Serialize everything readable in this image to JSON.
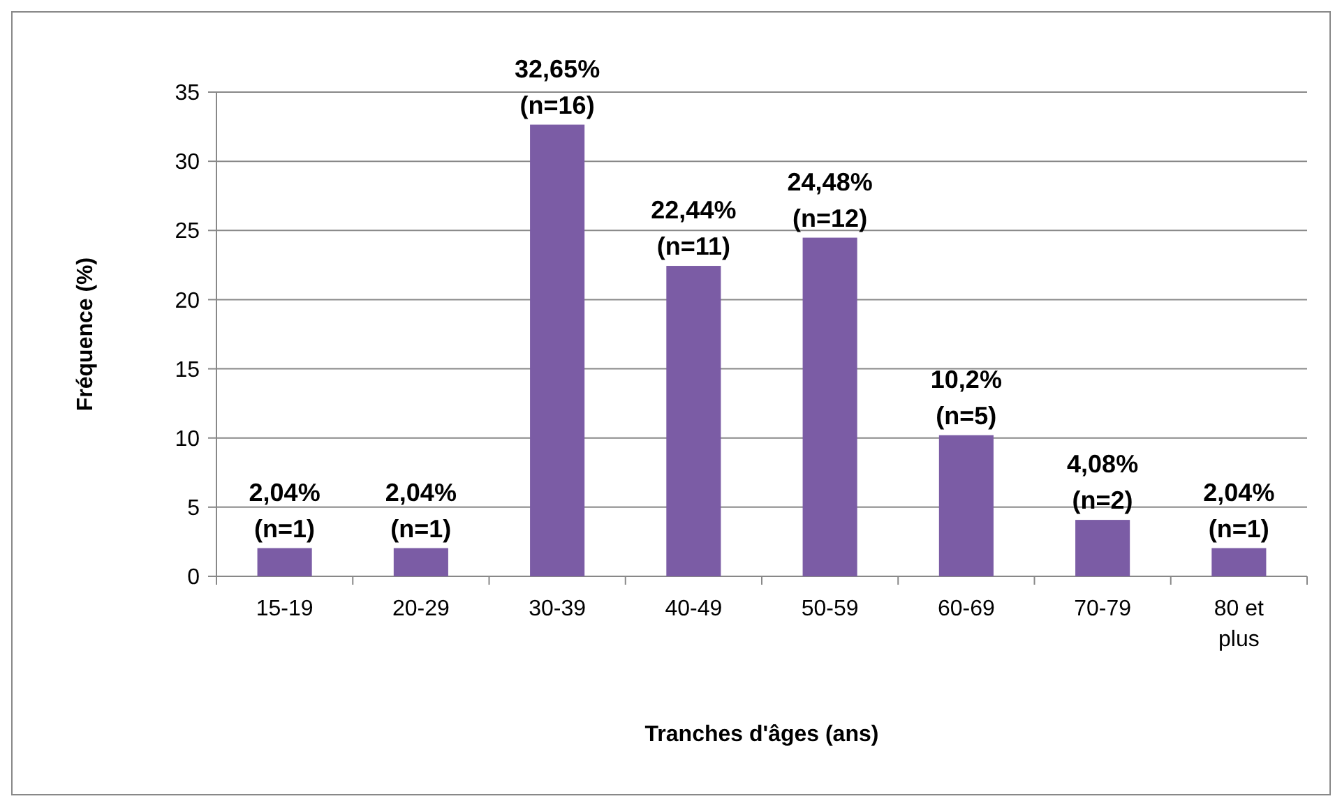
{
  "chart_data": {
    "type": "bar",
    "xlabel": "Tranches d'âges (ans)",
    "ylabel": "Fréquence (%)",
    "categories": [
      "15-19",
      "20-29",
      "30-39",
      "40-49",
      "50-59",
      "60-69",
      "70-79",
      "80 et plus"
    ],
    "values": [
      2.04,
      2.04,
      32.65,
      22.44,
      24.48,
      10.2,
      4.08,
      2.04
    ],
    "value_labels": [
      "2,04% (n=1)",
      "2,04% (n=1)",
      "32,65% (n=16)",
      "22,44% (n=11)",
      "24,48% (n=12)",
      "10,2% (n=5)",
      "4,08% (n=2)",
      "2,04% (n=1)"
    ],
    "color": "#7b5ca5",
    "ylim": [
      0,
      35
    ],
    "yticks": [
      0,
      5,
      10,
      15,
      20,
      25,
      30,
      35
    ],
    "grid": "y"
  }
}
